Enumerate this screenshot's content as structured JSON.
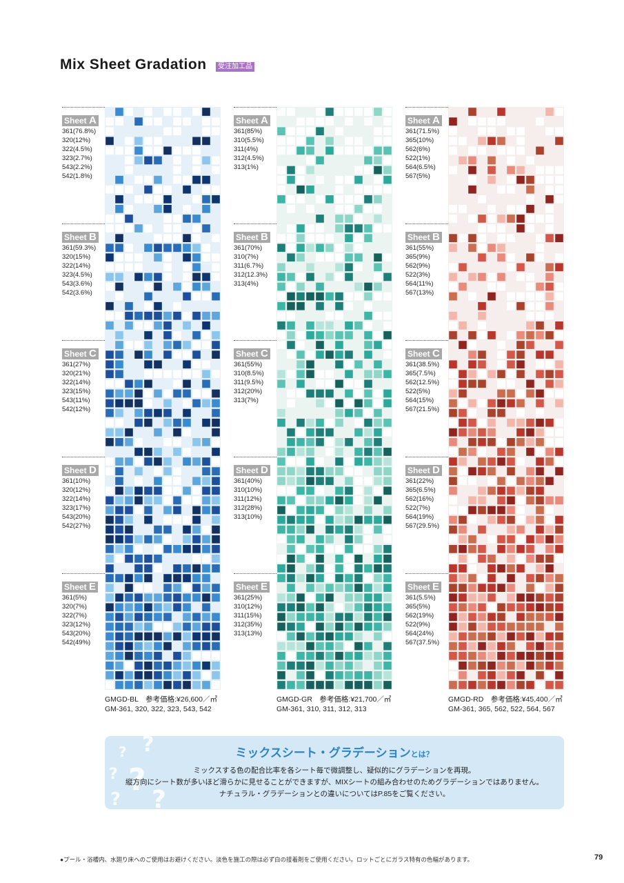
{
  "header": {
    "title": "Mix Sheet Gradation",
    "badge": "受注加工品"
  },
  "columns": [
    {
      "id": "blue",
      "palette": [
        "#1e4f9c",
        "#2b6cb7",
        "#3b8bd0",
        "#5fa6dd",
        "#0e3570",
        "#8cc6ec",
        "#14305e"
      ],
      "base_color": "#e6f0f8",
      "sheets": [
        {
          "prefix": "Sheet",
          "letter": "A",
          "lines": [
            "361(76.8%)",
            "320(12%)",
            "322(4.5%)",
            "323(2.7%)",
            "543(2.2%)",
            "542(1.8%)"
          ]
        },
        {
          "prefix": "Sheet",
          "letter": "B",
          "lines": [
            "361(59.3%)",
            "320(15%)",
            "322(14%)",
            "323(4.5%)",
            "543(3.6%)",
            "542(3.6%)"
          ]
        },
        {
          "prefix": "Sheet",
          "letter": "C",
          "lines": [
            "361(27%)",
            "320(21%)",
            "322(14%)",
            "323(15%)",
            "543(11%)",
            "542(12%)"
          ]
        },
        {
          "prefix": "Sheet",
          "letter": "D",
          "lines": [
            "361(10%)",
            "320(12%)",
            "322(14%)",
            "323(17%)",
            "543(20%)",
            "542(27%)"
          ]
        },
        {
          "prefix": "Sheet",
          "letter": "E",
          "lines": [
            "361(5%)",
            "320(7%)",
            "322(7%)",
            "323(12%)",
            "543(20%)",
            "542(49%)"
          ]
        }
      ],
      "product_line": "GMGD-BL　参考価格:¥26,600／㎡",
      "codes_line": "GM-361, 320, 322, 323, 543, 542"
    },
    {
      "id": "green",
      "palette": [
        "#2fa89c",
        "#5cc3b4",
        "#8fd6c9",
        "#1f7f78",
        "#b7e4da",
        "#3fb5a6",
        "#17605c"
      ],
      "base_color": "#ecf4f2",
      "sheets": [
        {
          "prefix": "Sheet",
          "letter": "A",
          "lines": [
            "361(85%)",
            "310(5.5%)",
            "311(4%)",
            "312(4.5%)",
            "313(1%)"
          ]
        },
        {
          "prefix": "Sheet",
          "letter": "B",
          "lines": [
            "361(70%)",
            "310(7%)",
            "311(6.7%)",
            "312(12.3%)",
            "313(4%)"
          ]
        },
        {
          "prefix": "Sheet",
          "letter": "C",
          "lines": [
            "361(55%)",
            "310(8.5%)",
            "311(9.5%)",
            "312(20%)",
            "313(7%)"
          ]
        },
        {
          "prefix": "Sheet",
          "letter": "D",
          "lines": [
            "361(40%)",
            "310(10%)",
            "311(12%)",
            "312(28%)",
            "313(10%)"
          ]
        },
        {
          "prefix": "Sheet",
          "letter": "E",
          "lines": [
            "361(25%)",
            "310(12%)",
            "311(15%)",
            "312(35%)",
            "313(13%)"
          ]
        }
      ],
      "product_line": "GMGD-GR　参考価格:¥21,700／㎡",
      "codes_line": "GM-361, 310, 311, 312, 313"
    },
    {
      "id": "red",
      "palette": [
        "#b8362c",
        "#d4584a",
        "#e88a7c",
        "#8f2520",
        "#c96e50",
        "#f2b6aa",
        "#a8432e"
      ],
      "base_color": "#f6eeec",
      "sheets": [
        {
          "prefix": "Sheet",
          "letter": "A",
          "lines": [
            "361(71.5%)",
            "365(10%)",
            "562(6%)",
            "522(1%)",
            "564(6.5%)",
            "567(5%)"
          ]
        },
        {
          "prefix": "Sheet",
          "letter": "B",
          "lines": [
            "361(55%)",
            "365(9%)",
            "562(9%)",
            "522(3%)",
            "564(11%)",
            "567(13%)"
          ]
        },
        {
          "prefix": "Sheet",
          "letter": "C",
          "lines": [
            "361(38.5%)",
            "365(7.5%)",
            "562(12.5%)",
            "522(5%)",
            "564(15%)",
            "567(21.5%)"
          ]
        },
        {
          "prefix": "Sheet",
          "letter": "D",
          "lines": [
            "361(22%)",
            "365(6.5%)",
            "562(16%)",
            "522(7%)",
            "564(19%)",
            "567(29.5%)"
          ]
        },
        {
          "prefix": "Sheet",
          "letter": "E",
          "lines": [
            "361(5.5%)",
            "365(5%)",
            "562(19%)",
            "522(9%)",
            "564(24%)",
            "567(37.5%)"
          ]
        }
      ],
      "product_line": "GMGD-RD　参考価格:¥45,400／㎡",
      "codes_line": "GM-361, 365, 562, 522, 564, 567"
    }
  ],
  "info_box": {
    "heading": "ミックスシート・グラデーション",
    "heading_suffix": "とは？",
    "lines": [
      "ミックスする色の配合比率を各シート毎で微調整し、疑似的にグラデーションを再現。",
      "縦方向にシート数が多いほど滑らかに見せることができますが、MIXシートの組み合わせのためグラデーションではありません。",
      "ナチュラル・グラデーションとの違いについてはP.85をご覧ください。"
    ]
  },
  "footer": {
    "note": "●プール・浴槽内、水廻り床へのご使用はお避けください。淡色を施工の際は必ず白の接着剤をご使用ください。ロットごとにガラス特有の色幅があります。",
    "page_number": "79"
  }
}
